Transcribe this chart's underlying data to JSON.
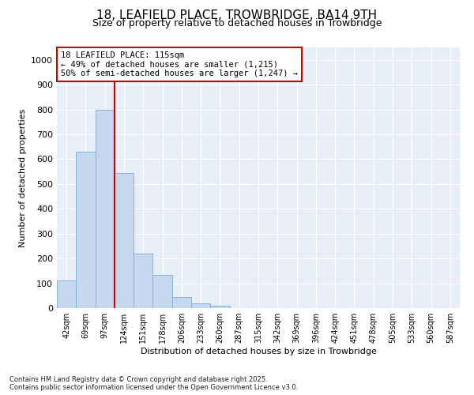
{
  "title": "18, LEAFIELD PLACE, TROWBRIDGE, BA14 9TH",
  "subtitle": "Size of property relative to detached houses in Trowbridge",
  "xlabel": "Distribution of detached houses by size in Trowbridge",
  "ylabel": "Number of detached properties",
  "categories": [
    "42sqm",
    "69sqm",
    "97sqm",
    "124sqm",
    "151sqm",
    "178sqm",
    "206sqm",
    "233sqm",
    "260sqm",
    "287sqm",
    "315sqm",
    "342sqm",
    "369sqm",
    "396sqm",
    "424sqm",
    "451sqm",
    "478sqm",
    "505sqm",
    "533sqm",
    "560sqm",
    "587sqm"
  ],
  "values": [
    110,
    630,
    800,
    545,
    220,
    135,
    45,
    20,
    10,
    0,
    0,
    0,
    0,
    0,
    0,
    0,
    0,
    0,
    0,
    0,
    0
  ],
  "bar_color": "#c5d8ef",
  "bar_edge_color": "#7aafd4",
  "vline_x_index": 2.5,
  "vline_color": "#cc0000",
  "annotation_title": "18 LEAFIELD PLACE: 115sqm",
  "annotation_line2": "← 49% of detached houses are smaller (1,215)",
  "annotation_line3": "50% of semi-detached houses are larger (1,247) →",
  "annotation_box_color": "#cc0000",
  "ylim": [
    0,
    1050
  ],
  "yticks": [
    0,
    100,
    200,
    300,
    400,
    500,
    600,
    700,
    800,
    900,
    1000
  ],
  "footer_line1": "Contains HM Land Registry data © Crown copyright and database right 2025.",
  "footer_line2": "Contains public sector information licensed under the Open Government Licence v3.0.",
  "background_color": "#ffffff",
  "plot_background": "#e8eef8",
  "grid_color": "#ffffff"
}
